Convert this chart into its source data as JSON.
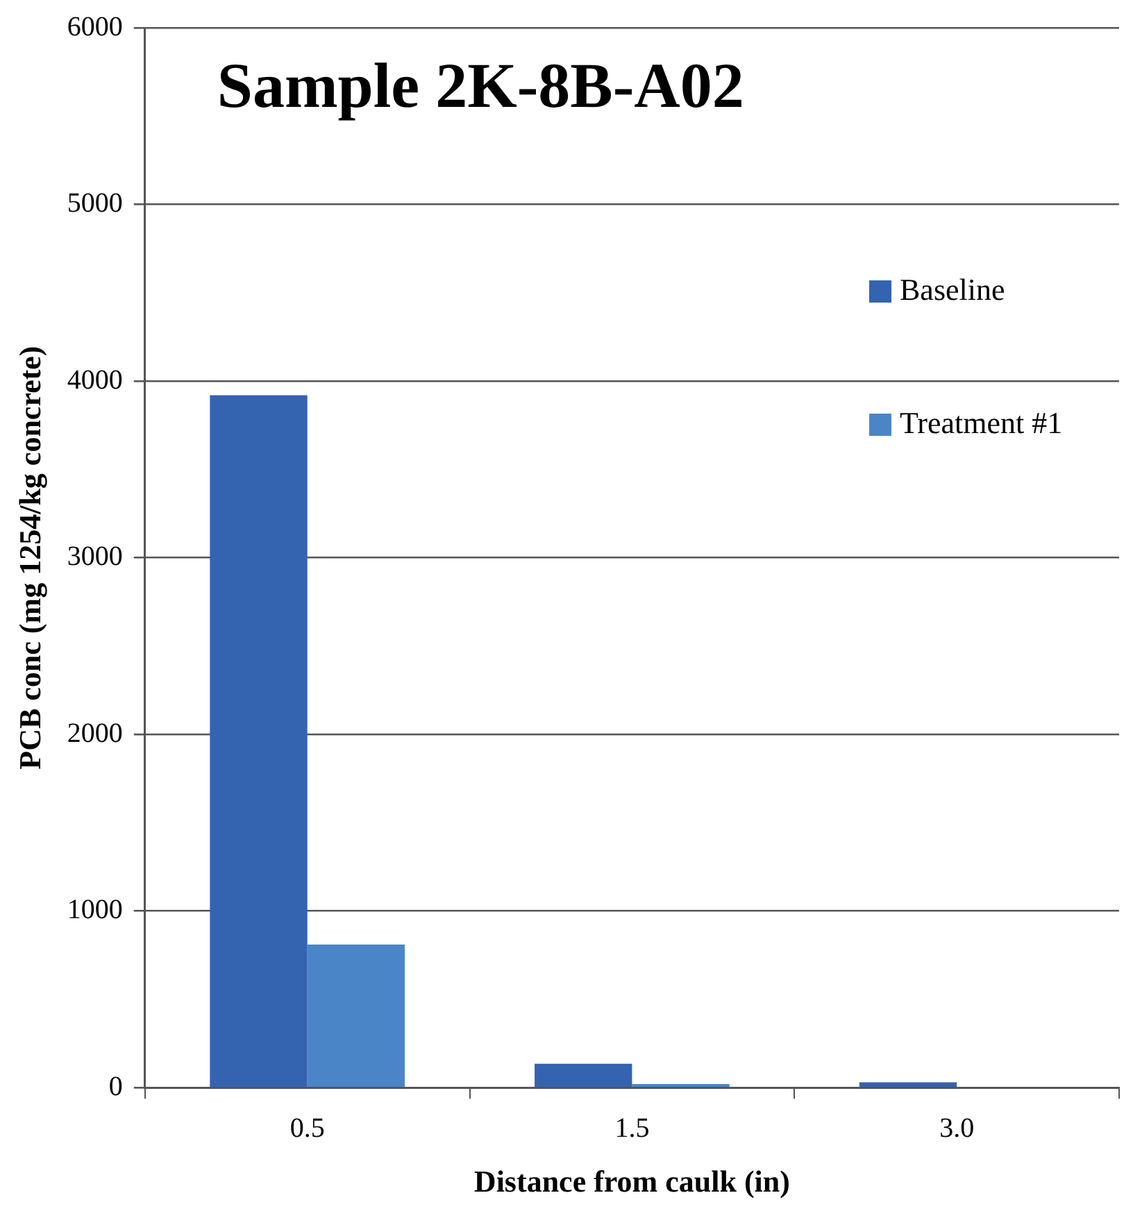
{
  "chart_data": {
    "type": "bar",
    "title": "Sample 2K-8B-A02",
    "xlabel": "Distance from caulk (in)",
    "ylabel": "PCB conc (mg 1254/kg concrete)",
    "categories": [
      "0.5",
      "1.5",
      "3.0"
    ],
    "series": [
      {
        "name": "Baseline",
        "color": "#3463b0",
        "values": [
          3920,
          135,
          30
        ]
      },
      {
        "name": "Treatment #1",
        "color": "#4a85c8",
        "values": [
          810,
          20,
          null
        ]
      }
    ],
    "ylim": [
      0,
      6000
    ],
    "yticks": [
      0,
      1000,
      2000,
      3000,
      4000,
      5000,
      6000
    ],
    "grid": "y",
    "legend": "right"
  }
}
